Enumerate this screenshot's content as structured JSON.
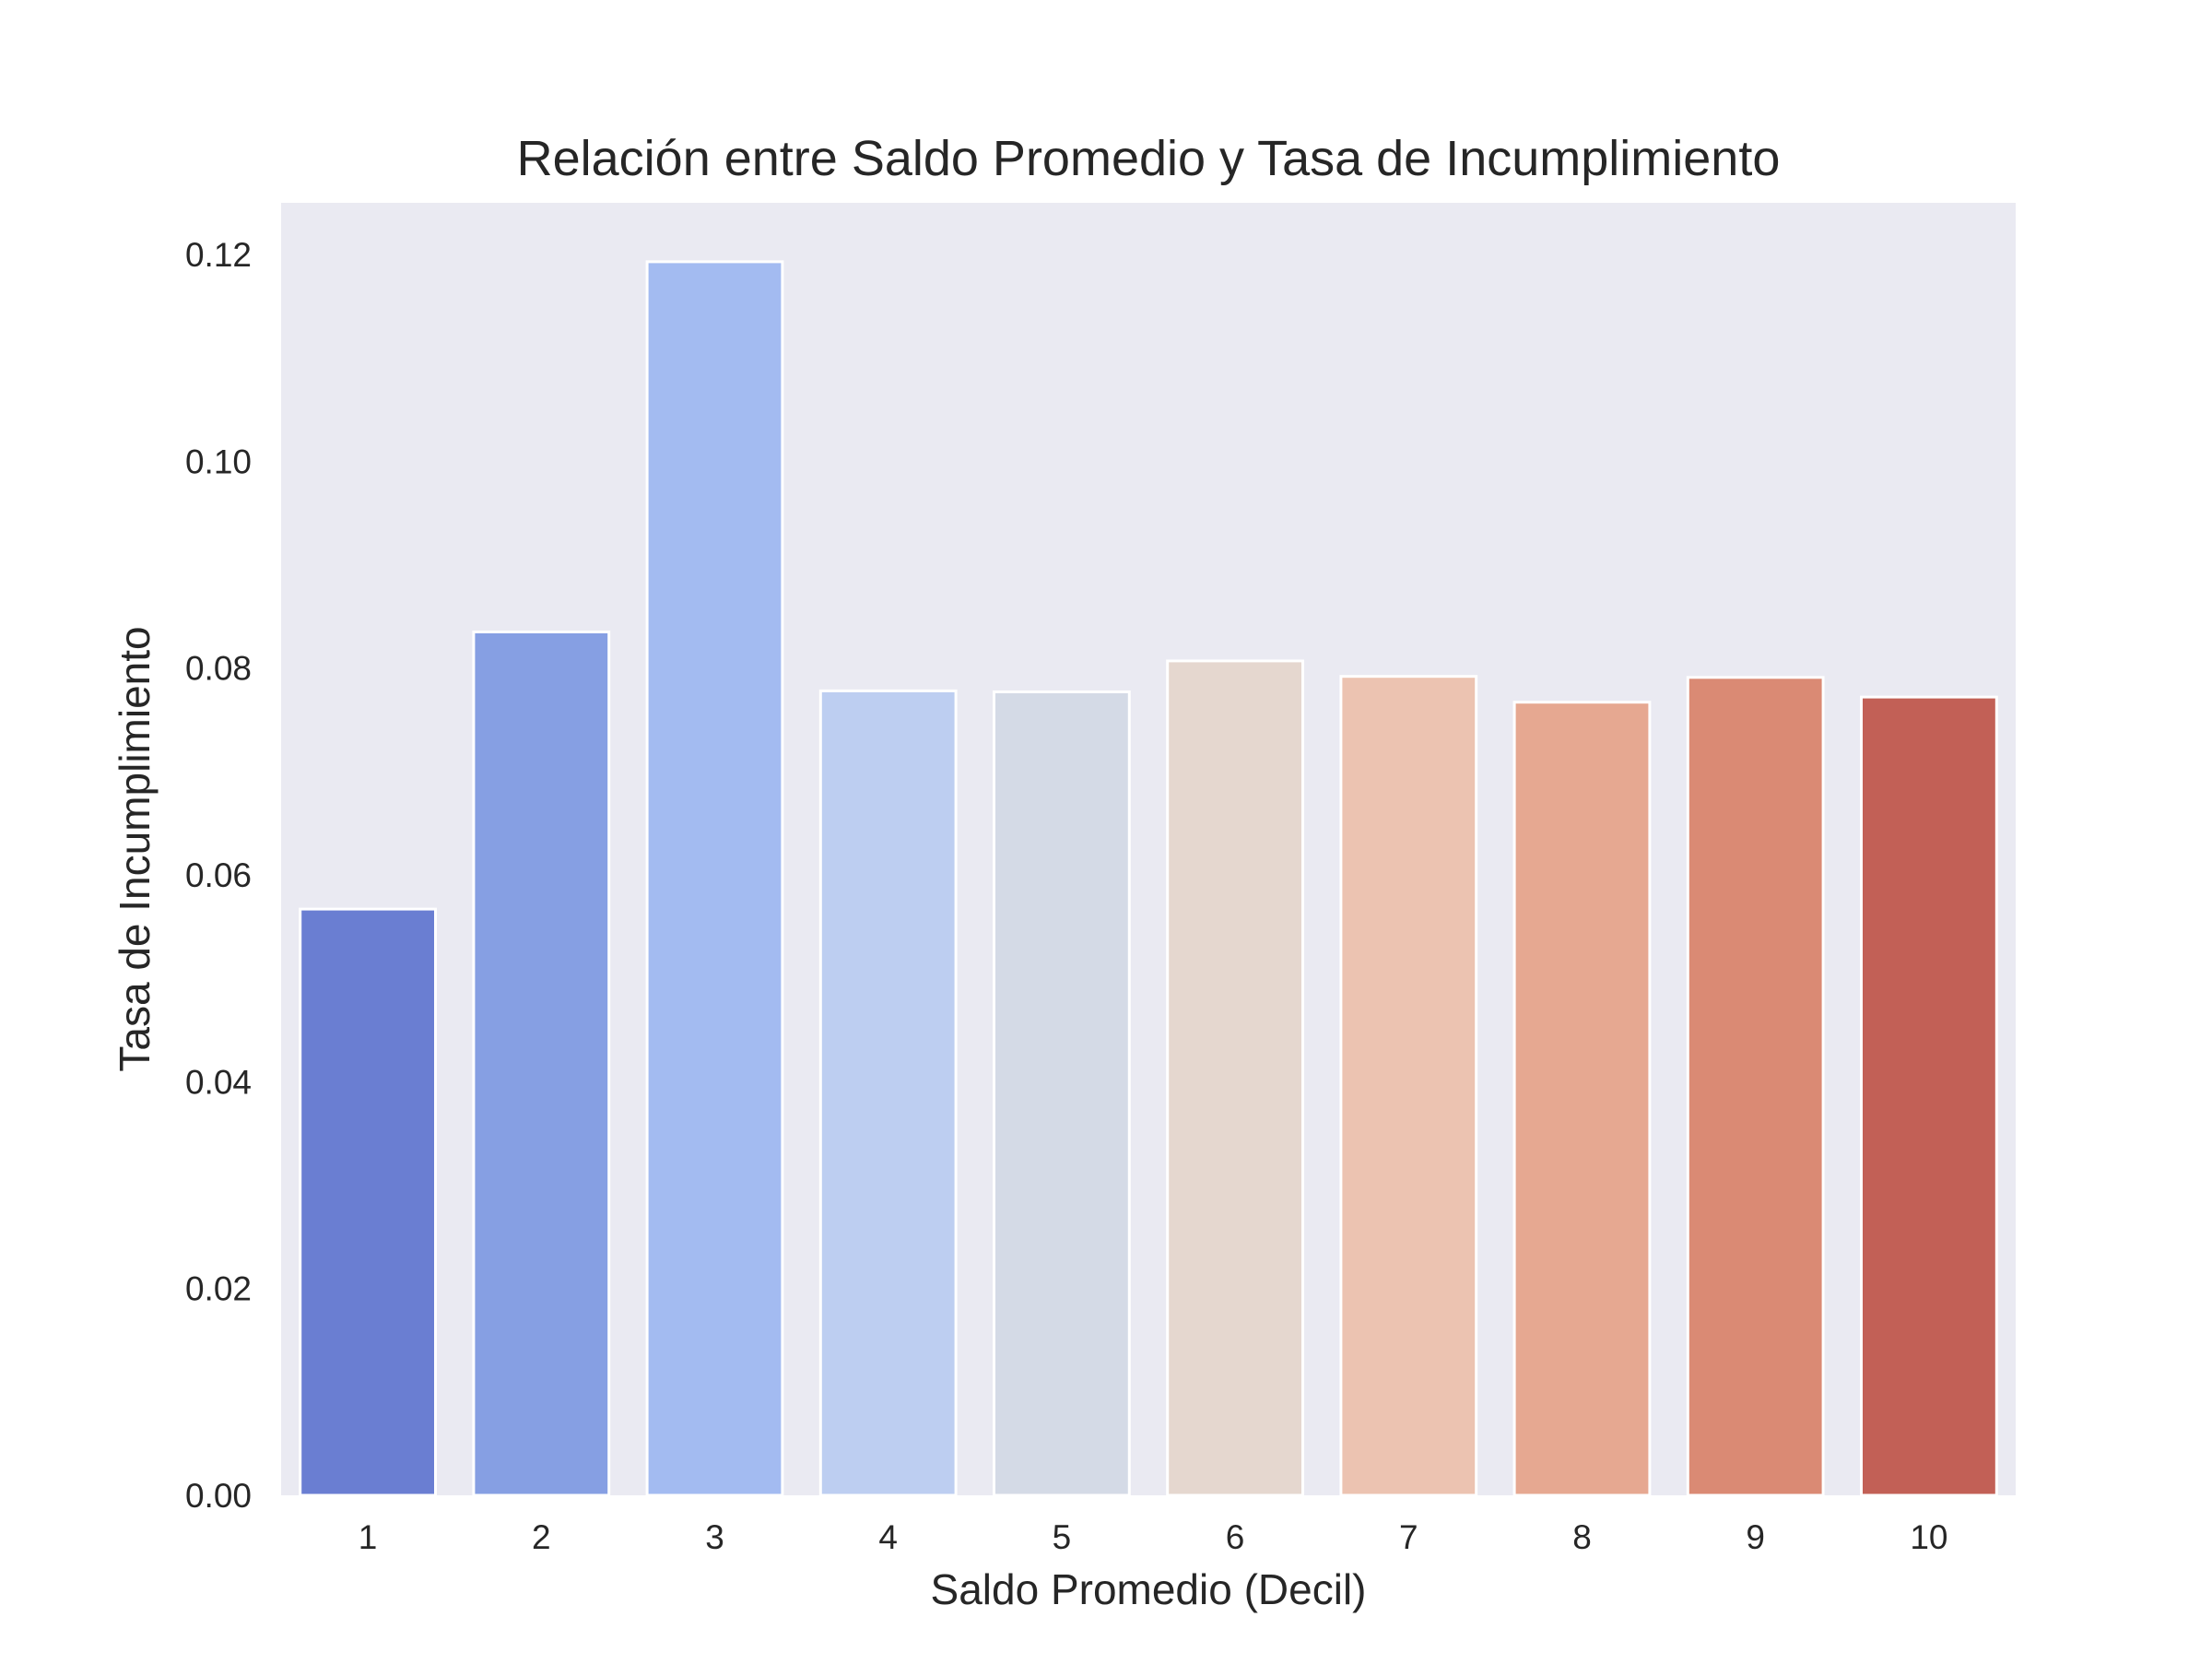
{
  "chart_data": {
    "type": "bar",
    "title": "Relación entre Saldo Promedio y Tasa de Incumplimiento",
    "xlabel": "Saldo Promedio (Decil)",
    "ylabel": "Tasa de Incumplimiento",
    "categories": [
      "1",
      "2",
      "3",
      "4",
      "5",
      "6",
      "7",
      "8",
      "9",
      "10"
    ],
    "values": [
      0.0567,
      0.0835,
      0.1193,
      0.0778,
      0.0777,
      0.0807,
      0.0792,
      0.0767,
      0.0791,
      0.0772
    ],
    "colors": [
      "#6a7ed2",
      "#869fe3",
      "#a3bbf1",
      "#bdcef1",
      "#d4dae6",
      "#e5d7cf",
      "#ecc3b1",
      "#e6a891",
      "#da8a74",
      "#c26056"
    ],
    "ylim": [
      0,
      0.125
    ],
    "yticks": [
      "0.00",
      "0.02",
      "0.04",
      "0.06",
      "0.08",
      "0.10",
      "0.12"
    ],
    "grid": false,
    "plot_background": "#eaeaf2",
    "bar_edge_color": "#ffffff"
  }
}
